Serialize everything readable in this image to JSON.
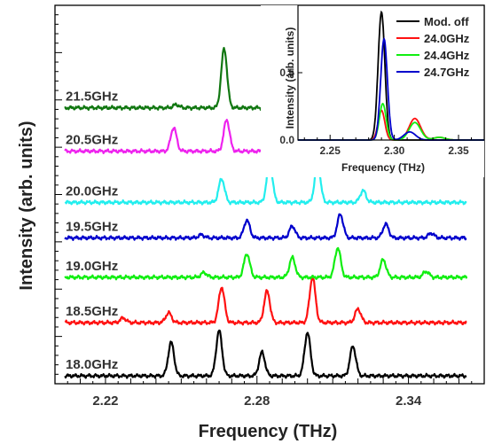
{
  "chart_data": [
    {
      "type": "line",
      "xlabel": "Frequency (THz)",
      "ylabel": "Intensity (arb. units)",
      "xlim": [
        2.2,
        2.37
      ],
      "xticks": [
        "2.22",
        "2.28",
        "2.34"
      ],
      "xtick_values": [
        2.22,
        2.28,
        2.34
      ],
      "ylim": [
        0,
        9.6
      ],
      "grid": false,
      "series": [
        {
          "name": "18.0GHz",
          "color": "#000000",
          "offset": 0.2,
          "peaks": [
            [
              2.246,
              0.85
            ],
            [
              2.265,
              1.15
            ],
            [
              2.282,
              0.6
            ],
            [
              2.3,
              1.1
            ],
            [
              2.318,
              0.75
            ]
          ]
        },
        {
          "name": "18.5GHz",
          "color": "#ff1111",
          "offset": 1.55,
          "peaks": [
            [
              2.227,
              0.12
            ],
            [
              2.245,
              0.25
            ],
            [
              2.266,
              0.9
            ],
            [
              2.284,
              0.8
            ],
            [
              2.302,
              1.15
            ],
            [
              2.32,
              0.35
            ]
          ]
        },
        {
          "name": "19.0GHz",
          "color": "#11ee11",
          "offset": 2.7,
          "peaks": [
            [
              2.259,
              0.12
            ],
            [
              2.276,
              0.6
            ],
            [
              2.294,
              0.5
            ],
            [
              2.312,
              0.75
            ],
            [
              2.33,
              0.45
            ],
            [
              2.347,
              0.15
            ]
          ]
        },
        {
          "name": "19.5GHz",
          "color": "#0000cc",
          "offset": 3.7,
          "peaks": [
            [
              2.258,
              0.08
            ],
            [
              2.276,
              0.45
            ],
            [
              2.294,
              0.3
            ],
            [
              2.313,
              0.6
            ],
            [
              2.331,
              0.35
            ],
            [
              2.349,
              0.12
            ]
          ]
        },
        {
          "name": "20.0GHz",
          "color": "#22eeee",
          "offset": 4.6,
          "peaks": [
            [
              2.266,
              0.6
            ],
            [
              2.285,
              1.0
            ],
            [
              2.304,
              0.95
            ],
            [
              2.322,
              0.3
            ]
          ]
        },
        {
          "name": "20.5GHz",
          "color": "#ee22ee",
          "offset": 5.9,
          "peaks": [
            [
              2.247,
              0.6
            ],
            [
              2.268,
              0.8
            ],
            [
              2.287,
              0.8
            ],
            [
              2.307,
              0.35
            ]
          ]
        },
        {
          "name": "21.5GHz",
          "color": "#117711",
          "offset": 7.0,
          "peaks": [
            [
              2.248,
              0.08
            ],
            [
              2.267,
              1.5
            ],
            [
              2.287,
              0.35
            ]
          ]
        }
      ]
    },
    {
      "type": "line",
      "inset": true,
      "xlabel": "Frequency (THz)",
      "ylabel": "Intensity (arb. units)",
      "xlim": [
        2.225,
        2.37
      ],
      "ylim": [
        0,
        1.0
      ],
      "xticks": [
        "2.25",
        "2.30",
        "2.35"
      ],
      "xtick_values": [
        2.25,
        2.3,
        2.35
      ],
      "yticks": [
        "0.0",
        "0.5"
      ],
      "ytick_values": [
        0.0,
        0.5
      ],
      "legend_position": "top-right",
      "series": [
        {
          "name": "Mod. off",
          "color": "#000000",
          "peaks": [
            [
              2.29,
              0.95
            ]
          ]
        },
        {
          "name": "24.0GHz",
          "color": "#ff1111",
          "peaks": [
            [
              2.29,
              0.22
            ],
            [
              2.316,
              0.16
            ],
            [
              2.335,
              0.02
            ]
          ]
        },
        {
          "name": "24.4GHz",
          "color": "#11ee11",
          "peaks": [
            [
              2.291,
              0.27
            ],
            [
              2.316,
              0.13
            ],
            [
              2.335,
              0.02
            ]
          ]
        },
        {
          "name": "24.7GHz",
          "color": "#0000cc",
          "peaks": [
            [
              2.292,
              0.75
            ],
            [
              2.312,
              0.06
            ]
          ]
        }
      ]
    }
  ]
}
